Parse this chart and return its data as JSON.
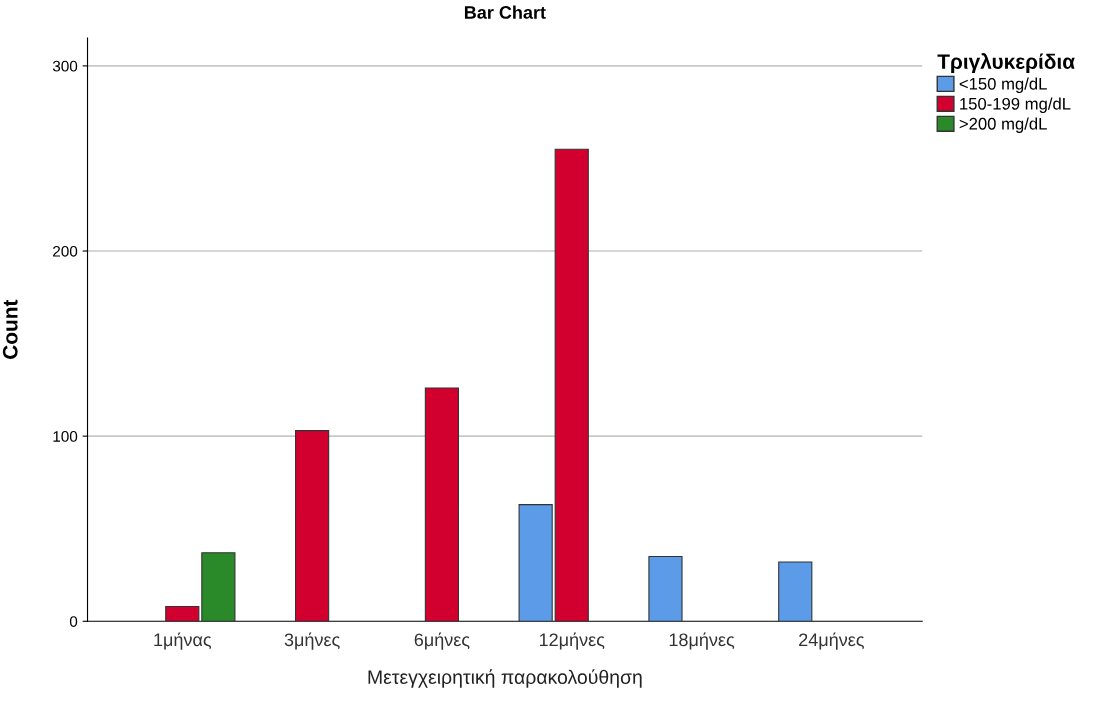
{
  "chart_data": {
    "type": "bar",
    "title": "Bar Chart",
    "xlabel": "Μετεγχειρητική παρακολούθηση",
    "ylabel": "Count",
    "legend_title": "Τριγλυκερίδια",
    "categories": [
      "1μήνας",
      "3μήνες",
      "6μήνες",
      "12μήνες",
      "18μήνες",
      "24μήνες"
    ],
    "series": [
      {
        "name": "<150 mg/dL",
        "color": "#5b9be8",
        "values": [
          null,
          null,
          null,
          63,
          35,
          32
        ]
      },
      {
        "name": "150-199 mg/dL",
        "color": "#d2002e",
        "values": [
          8,
          103,
          126,
          255,
          null,
          null
        ]
      },
      {
        "name": ">200 mg/dL",
        "color": "#2a8a2a",
        "values": [
          37,
          null,
          null,
          null,
          null,
          null
        ]
      }
    ],
    "ylim": [
      0,
      315
    ],
    "yticks": [
      0,
      100,
      200,
      300
    ],
    "grid": "y",
    "legend": "top right"
  }
}
